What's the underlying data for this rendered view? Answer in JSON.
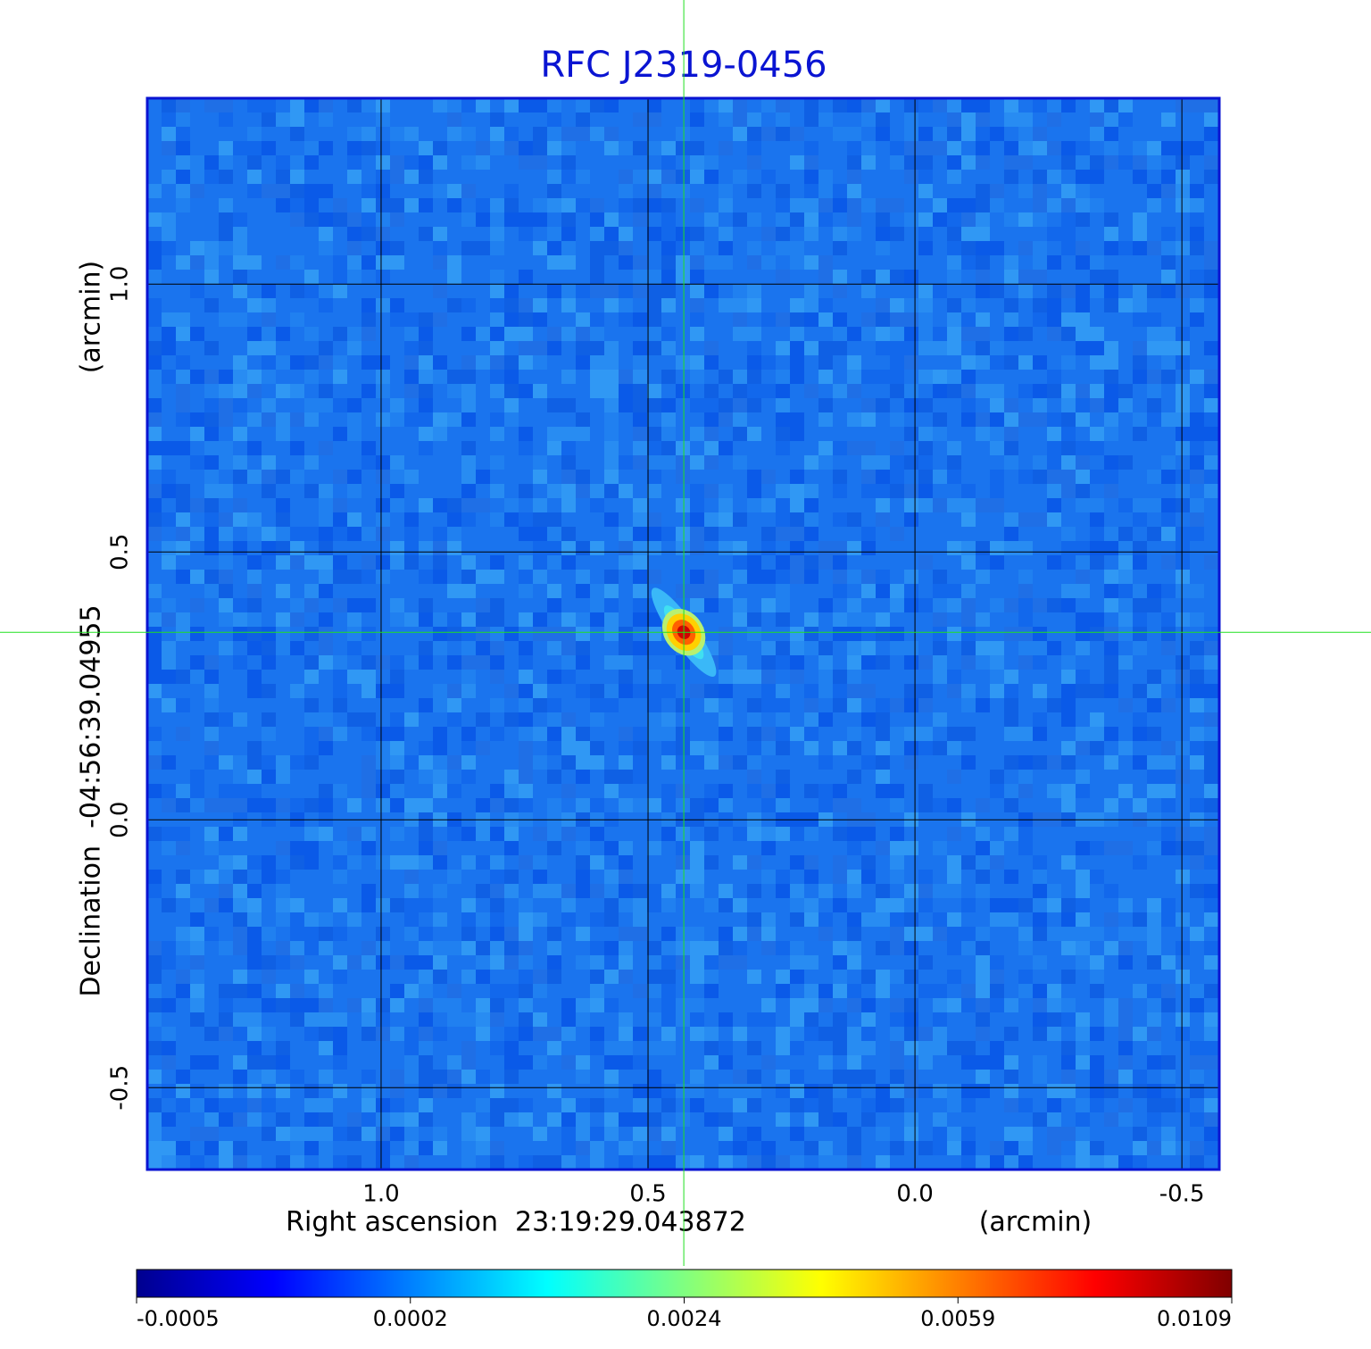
{
  "chart_data": {
    "type": "heatmap",
    "title": "RFC J2319-0456",
    "x_label": "Right ascension  23:19:29.043872",
    "x_unit": "(arcmin)",
    "y_label": "Declination  -04:56:39.04955",
    "y_unit": "(arcmin)",
    "xlim": [
      1.438,
      -0.57
    ],
    "ylim": [
      -0.653,
      1.347
    ],
    "xticks": [
      {
        "value": 1,
        "label": "1.0"
      },
      0.5,
      {
        "value": 0,
        "label": "0.0"
      },
      -0.5
    ],
    "yticks": [
      {
        "value": 1,
        "label": "1.0"
      },
      0.5,
      {
        "value": 0,
        "label": "0.0"
      },
      -0.5
    ],
    "grid": true,
    "colormap": "jet",
    "colorbar_ticks": [
      -0.0005,
      0.0002,
      0.0024,
      0.0059,
      0.0109
    ],
    "source": {
      "x": 0.433,
      "y": 0.35
    }
  }
}
